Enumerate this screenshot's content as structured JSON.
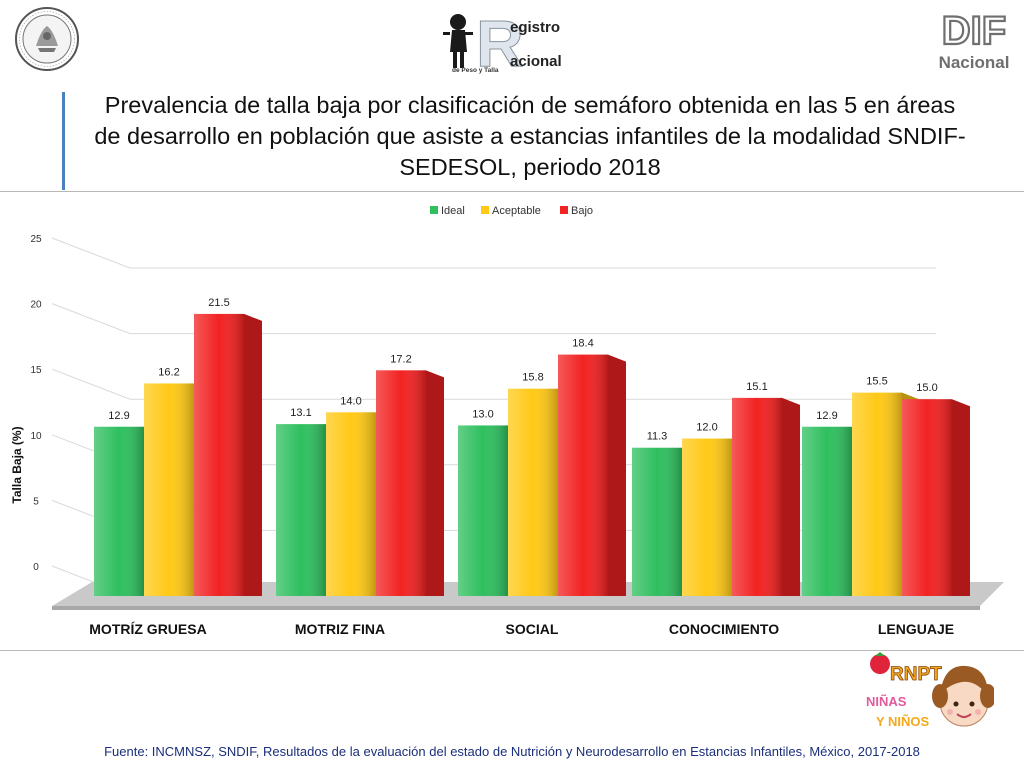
{
  "header": {
    "registro_line1": "egistro",
    "registro_line2": "acional",
    "registro_initial": "R",
    "registro_sub": "de Peso y Talla",
    "dif_line1": "DIF",
    "dif_line2": "Nacional",
    "title": "Prevalencia de talla baja por clasificación de semáforo obtenida en las 5 en áreas de desarrollo en población que asiste a estancias infantiles de la modalidad SNDIF-SEDESOL, periodo 2018"
  },
  "chart_data": {
    "type": "bar",
    "categories": [
      "MOTRÍZ GRUESA",
      "MOTRIZ FINA",
      "SOCIAL",
      "CONOCIMIENTO",
      "LENGUAJE"
    ],
    "series": [
      {
        "name": "Ideal",
        "values": [
          12.9,
          13.1,
          13.0,
          11.3,
          12.9
        ],
        "color": "#2fbf5f"
      },
      {
        "name": "Aceptable",
        "values": [
          16.2,
          14.0,
          15.8,
          12.0,
          15.5
        ],
        "color": "#ffc916"
      },
      {
        "name": "Bajo",
        "values": [
          21.5,
          17.2,
          18.4,
          15.1,
          15.0
        ],
        "color": "#f22222"
      }
    ],
    "value_labels": [
      [
        "12.9",
        "13.1",
        "13.0",
        "11.3",
        "12.9"
      ],
      [
        "16.2",
        "14.0",
        "15.8",
        "12.0",
        "15.5"
      ],
      [
        "21.5",
        "17.2",
        "18.4",
        "15.1",
        "15.0"
      ]
    ],
    "yticks": [
      "0",
      "5",
      "10",
      "15",
      "20",
      "25"
    ],
    "ylim": [
      0,
      25
    ],
    "ylabel": "Talla Baja (%)",
    "xlabel": "",
    "legend_position": "top-center",
    "grid": true
  },
  "footer": {
    "ninos_badge": "RNPT",
    "ninos_line1": "NIÑAS",
    "ninos_line2": "Y NIÑOS",
    "source": "Fuente: INCMNSZ, SNDIF, Resultados de la evaluación del estado de Nutrición y Neurodesarrollo en Estancias Infantiles, México, 2017-2018"
  }
}
